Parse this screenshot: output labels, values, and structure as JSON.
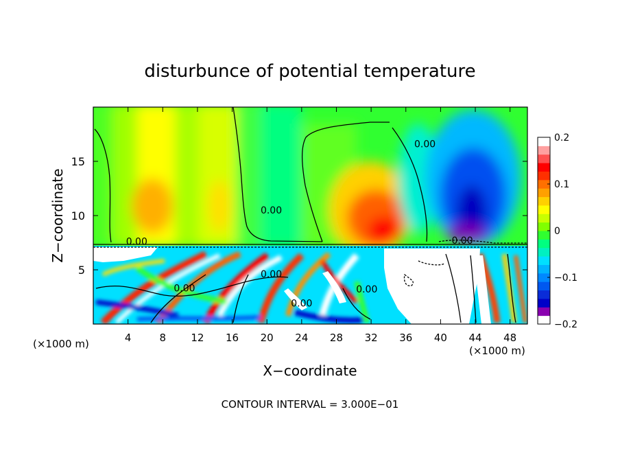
{
  "chart_data": {
    "type": "heatmap",
    "title": "disturbunce of potential temperature",
    "xlabel": "X−coordinate",
    "ylabel": "Z−coordinate",
    "x_unit_left": "(×1000 m)",
    "x_unit_right": "(×1000 m)",
    "footer": "CONTOUR INTERVAL = 3.000E−01",
    "xlim": [
      0,
      50
    ],
    "ylim": [
      0,
      20
    ],
    "x_ticks": [
      4,
      8,
      12,
      16,
      20,
      24,
      28,
      32,
      36,
      40,
      44,
      48
    ],
    "y_ticks": [
      5,
      10,
      15
    ],
    "colorbar": {
      "min": -0.2,
      "max": 0.2,
      "tick_values": [
        0.2,
        0.1,
        0,
        -0.1,
        -0.2
      ],
      "tick_labels": [
        "0.2",
        "0.1",
        "0",
        "−0.1",
        "−0.2"
      ],
      "colors": [
        "#ffffff",
        "#8a00b0",
        "#0000c8",
        "#0a2cd8",
        "#0058f0",
        "#0088ff",
        "#00b4ff",
        "#00e0ff",
        "#00f0c0",
        "#00ff80",
        "#30ff30",
        "#80ff00",
        "#c8ff00",
        "#ffff00",
        "#ffd000",
        "#ffa000",
        "#ff7000",
        "#ff3000",
        "#ff0000",
        "#ff5050",
        "#ffa0a0",
        "#ffffff"
      ]
    },
    "contour_labels": [
      {
        "text": "0.00",
        "x": 5,
        "z": 7.3
      },
      {
        "text": "0.00",
        "x": 20.5,
        "z": 10.2
      },
      {
        "text": "0.00",
        "x": 38.2,
        "z": 16.3
      },
      {
        "text": "0.00",
        "x": 20.5,
        "z": 4.3
      },
      {
        "text": "0.00",
        "x": 10.5,
        "z": 3.0
      },
      {
        "text": "0.00",
        "x": 31.5,
        "z": 2.9
      },
      {
        "text": "0.00",
        "x": 24,
        "z": 1.6
      },
      {
        "text": "0.00",
        "x": 42.5,
        "z": 7.4
      }
    ],
    "grid": false,
    "legend": "colorbar-right"
  }
}
